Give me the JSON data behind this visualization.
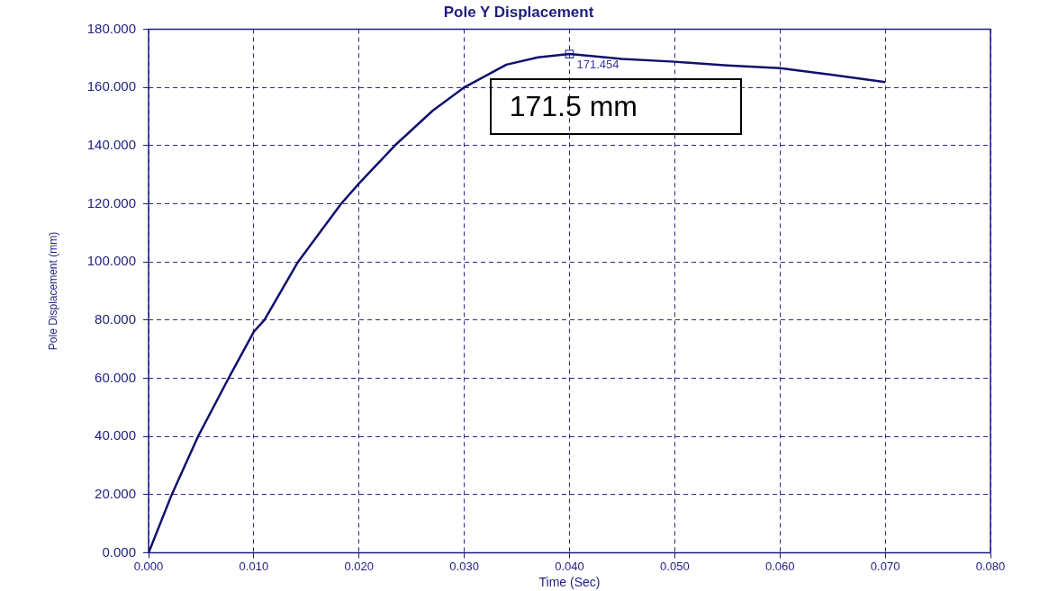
{
  "chart_data": {
    "type": "line",
    "title": "Pole Y Displacement",
    "xlabel": "Time (Sec)",
    "ylabel": "Pole Displacement (mm)",
    "xlim": [
      0,
      0.08
    ],
    "xticks": [
      {
        "value": 0,
        "label": "0.000"
      },
      {
        "value": 0.01,
        "label": "0.010"
      },
      {
        "value": 0.02,
        "label": "0.020"
      },
      {
        "value": 0.03,
        "label": "0.030"
      },
      {
        "value": 0.04,
        "label": "0.040"
      },
      {
        "value": 0.05,
        "label": "0.050"
      },
      {
        "value": 0.06,
        "label": "0.060"
      },
      {
        "value": 0.07,
        "label": "0.070"
      },
      {
        "value": 0.08,
        "label": "0.080"
      }
    ],
    "ylim": [
      0,
      180
    ],
    "yticks": [
      {
        "value": 0,
        "label": "0.000"
      },
      {
        "value": 20,
        "label": "20.000"
      },
      {
        "value": 40,
        "label": "40.000"
      },
      {
        "value": 60,
        "label": "60.000"
      },
      {
        "value": 80,
        "label": "80.000"
      },
      {
        "value": 100,
        "label": "100.000"
      },
      {
        "value": 120,
        "label": "120.000"
      },
      {
        "value": 140,
        "label": "140.000"
      },
      {
        "value": 160,
        "label": "160.000"
      },
      {
        "value": 180,
        "label": "180.000"
      }
    ],
    "grid": true,
    "legend": false,
    "marker": "none",
    "line_style": "solid",
    "series": [
      {
        "color": "#10106e",
        "x": [
          0,
          0.0022,
          0.0047,
          0.0076,
          0.01,
          0.011,
          0.0142,
          0.0183,
          0.02,
          0.0234,
          0.027,
          0.03,
          0.034,
          0.037,
          0.04,
          0.045,
          0.05,
          0.055,
          0.06,
          0.065,
          0.07
        ],
        "values": [
          0,
          20,
          40,
          60,
          76,
          80,
          100,
          120,
          127,
          140,
          152,
          160,
          167.8,
          170.3,
          171.454,
          169.8,
          168.8,
          167.5,
          166.6,
          164.3,
          161.8
        ]
      },
      {
        "type": "scatter",
        "color": "#3a3aa0",
        "marker": "square",
        "x": [
          0.04
        ],
        "values": [
          171.454
        ]
      }
    ],
    "annotations": [
      {
        "text": "171.454",
        "x": 0.04,
        "y": 171.454
      },
      "171.5 mm"
    ]
  }
}
